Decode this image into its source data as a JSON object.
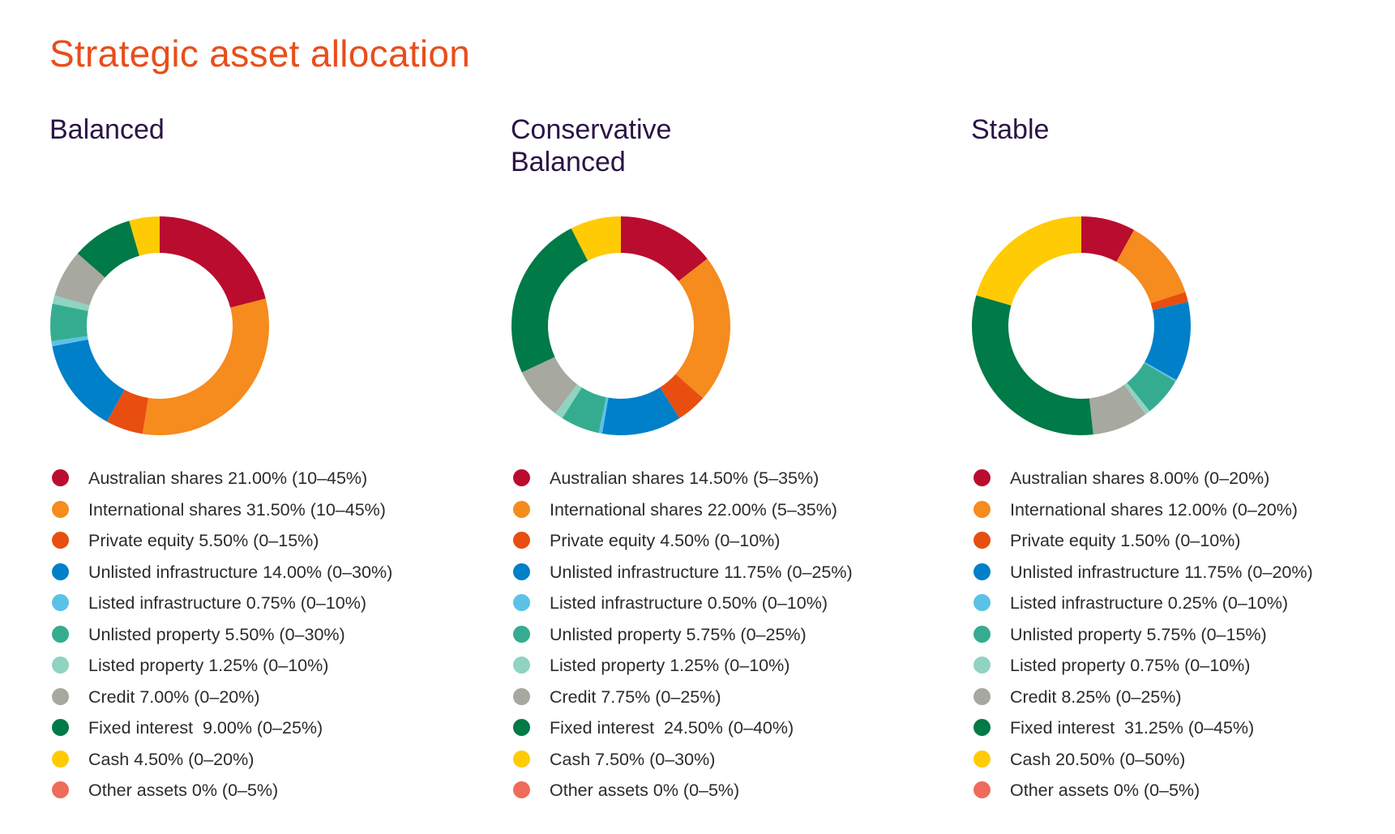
{
  "page": {
    "title": "Strategic asset allocation"
  },
  "colors": {
    "Australian shares": "#ba0c2f",
    "International shares": "#f68b1e",
    "Private equity": "#e84e0f",
    "Unlisted infrastructure": "#0080c8",
    "Listed infrastructure": "#5bc2e7",
    "Unlisted property": "#35ac90",
    "Listed property": "#8fd3c0",
    "Credit": "#a7a8a0",
    "Fixed interest": "#007a47",
    "Cash": "#ffcb05",
    "Other assets": "#ef6b5c"
  },
  "chart_data": [
    {
      "type": "pie",
      "style": "donut",
      "title": "Balanced",
      "slices": [
        {
          "name": "Australian shares",
          "value": 21.0,
          "label": "Australian shares 21.00% (10–45%)"
        },
        {
          "name": "International shares",
          "value": 31.5,
          "label": "International shares 31.50% (10–45%)"
        },
        {
          "name": "Private equity",
          "value": 5.5,
          "label": "Private equity 5.50% (0–15%)"
        },
        {
          "name": "Unlisted infrastructure",
          "value": 14.0,
          "label": "Unlisted infrastructure 14.00% (0–30%)"
        },
        {
          "name": "Listed infrastructure",
          "value": 0.75,
          "label": "Listed infrastructure 0.75% (0–10%)"
        },
        {
          "name": "Unlisted property",
          "value": 5.5,
          "label": "Unlisted property 5.50% (0–30%)"
        },
        {
          "name": "Listed property",
          "value": 1.25,
          "label": "Listed property 1.25% (0–10%)"
        },
        {
          "name": "Credit",
          "value": 7.0,
          "label": "Credit 7.00% (0–20%)"
        },
        {
          "name": "Fixed interest",
          "value": 9.0,
          "label": "Fixed interest  9.00% (0–25%)"
        },
        {
          "name": "Cash",
          "value": 4.5,
          "label": "Cash 4.50% (0–20%)"
        },
        {
          "name": "Other assets",
          "value": 0,
          "label": "Other assets 0% (0–5%)"
        }
      ]
    },
    {
      "type": "pie",
      "style": "donut",
      "title": "Conservative\nBalanced",
      "slices": [
        {
          "name": "Australian shares",
          "value": 14.5,
          "label": "Australian shares 14.50% (5–35%)"
        },
        {
          "name": "International shares",
          "value": 22.0,
          "label": "International shares 22.00% (5–35%)"
        },
        {
          "name": "Private equity",
          "value": 4.5,
          "label": "Private equity 4.50% (0–10%)"
        },
        {
          "name": "Unlisted infrastructure",
          "value": 11.75,
          "label": "Unlisted infrastructure 11.75% (0–25%)"
        },
        {
          "name": "Listed infrastructure",
          "value": 0.5,
          "label": "Listed infrastructure 0.50% (0–10%)"
        },
        {
          "name": "Unlisted property",
          "value": 5.75,
          "label": "Unlisted property 5.75% (0–25%)"
        },
        {
          "name": "Listed property",
          "value": 1.25,
          "label": "Listed property 1.25% (0–10%)"
        },
        {
          "name": "Credit",
          "value": 7.75,
          "label": "Credit 7.75% (0–25%)"
        },
        {
          "name": "Fixed interest",
          "value": 24.5,
          "label": "Fixed interest  24.50% (0–40%)"
        },
        {
          "name": "Cash",
          "value": 7.5,
          "label": "Cash 7.50% (0–30%)"
        },
        {
          "name": "Other assets",
          "value": 0,
          "label": "Other assets 0% (0–5%)"
        }
      ]
    },
    {
      "type": "pie",
      "style": "donut",
      "title": "Stable",
      "slices": [
        {
          "name": "Australian shares",
          "value": 8.0,
          "label": "Australian shares 8.00% (0–20%)"
        },
        {
          "name": "International shares",
          "value": 12.0,
          "label": "International shares 12.00% (0–20%)"
        },
        {
          "name": "Private equity",
          "value": 1.5,
          "label": "Private equity 1.50% (0–10%)"
        },
        {
          "name": "Unlisted infrastructure",
          "value": 11.75,
          "label": "Unlisted infrastructure 11.75% (0–20%)"
        },
        {
          "name": "Listed infrastructure",
          "value": 0.25,
          "label": "Listed infrastructure 0.25% (0–10%)"
        },
        {
          "name": "Unlisted property",
          "value": 5.75,
          "label": "Unlisted property 5.75% (0–15%)"
        },
        {
          "name": "Listed property",
          "value": 0.75,
          "label": "Listed property 0.75% (0–10%)"
        },
        {
          "name": "Credit",
          "value": 8.25,
          "label": "Credit 8.25% (0–25%)"
        },
        {
          "name": "Fixed interest",
          "value": 31.25,
          "label": "Fixed interest  31.25% (0–45%)"
        },
        {
          "name": "Cash",
          "value": 20.5,
          "label": "Cash 20.50% (0–50%)"
        },
        {
          "name": "Other assets",
          "value": 0,
          "label": "Other assets 0% (0–5%)"
        }
      ]
    }
  ]
}
